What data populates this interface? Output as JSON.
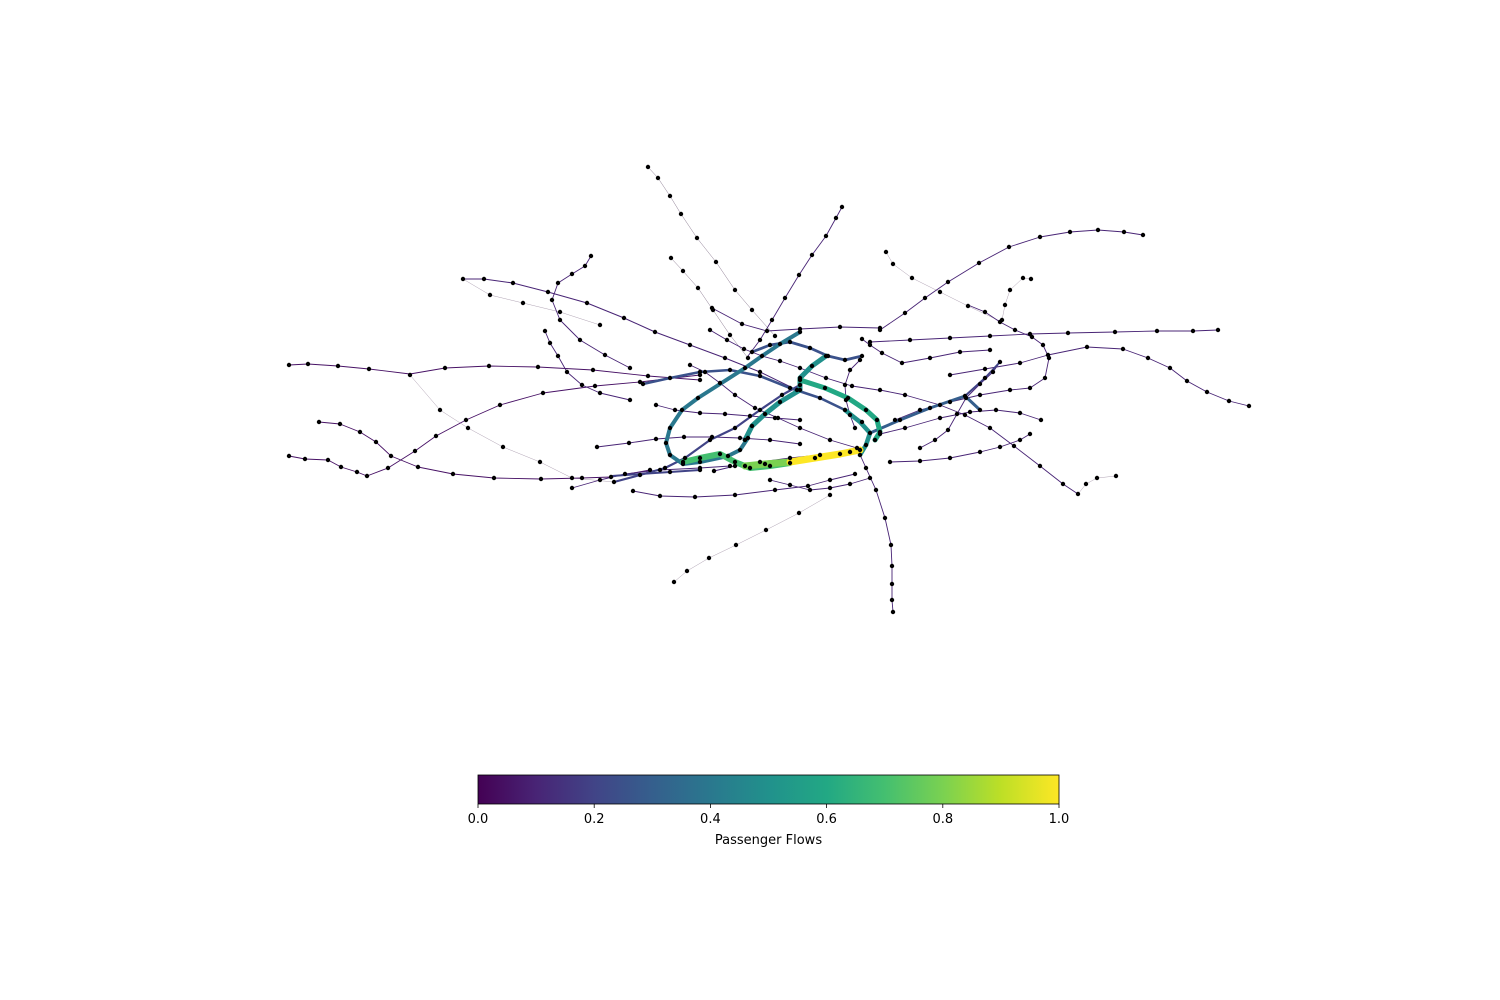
{
  "chart_data": {
    "type": "network",
    "colorbar": {
      "label": "Passenger Flows",
      "range": [
        0.0,
        1.0
      ],
      "ticks": [
        "0.0",
        "0.2",
        "0.4",
        "0.6",
        "0.8",
        "1.0"
      ],
      "colormap": "viridis"
    },
    "node_color": "#000000",
    "high_flow_routes": [
      {
        "flow": 1.0,
        "color": "#fde725"
      },
      {
        "flow": 0.78,
        "color": "#7ad151"
      },
      {
        "flow": 0.55,
        "color": "#1f9e89"
      },
      {
        "flow": 0.45,
        "color": "#26828e"
      },
      {
        "flow": 0.3,
        "color": "#3b528b"
      }
    ]
  }
}
